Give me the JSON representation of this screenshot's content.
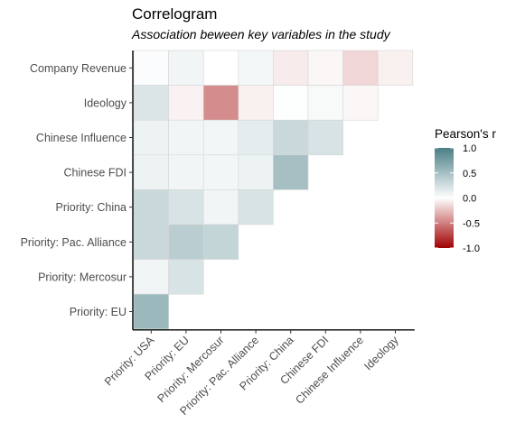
{
  "chart_data": {
    "type": "heatmap",
    "title": "Correlogram",
    "subtitle": "Association beween key variables in the study",
    "x_labels": [
      "Priority: USA",
      "Priority: EU",
      "Priority: Mercosur",
      "Priority: Pac. Alliance",
      "Priority: China",
      "Chinese FDI",
      "Chinese Influence",
      "Ideology"
    ],
    "y_labels_top_to_bottom": [
      "Company Revenue",
      "Ideology",
      "Chinese Influence",
      "Chinese FDI",
      "Priority: China",
      "Priority: Pac. Alliance",
      "Priority: Mercosur",
      "Priority: EU"
    ],
    "values": [
      [
        0.02,
        0.08,
        0.0,
        0.06,
        -0.08,
        -0.03,
        -0.16,
        -0.06
      ],
      [
        0.2,
        -0.05,
        -0.45,
        -0.06,
        0.01,
        0.04,
        -0.03
      ],
      [
        0.1,
        0.08,
        0.07,
        0.15,
        0.3,
        0.22
      ],
      [
        0.1,
        0.08,
        0.07,
        0.1,
        0.5
      ],
      [
        0.3,
        0.22,
        0.08,
        0.22
      ],
      [
        0.3,
        0.38,
        0.33
      ],
      [
        0.08,
        0.22
      ],
      [
        0.55
      ]
    ],
    "legend": {
      "title": "Pearson's r",
      "ticks": [
        "1.0",
        "0.5",
        "0.0",
        "-0.5",
        "-1.0"
      ],
      "range": [
        -1,
        1
      ],
      "colors": {
        "low": "#a10000",
        "mid": "#ffffff",
        "high": "#4a7f86"
      }
    }
  }
}
